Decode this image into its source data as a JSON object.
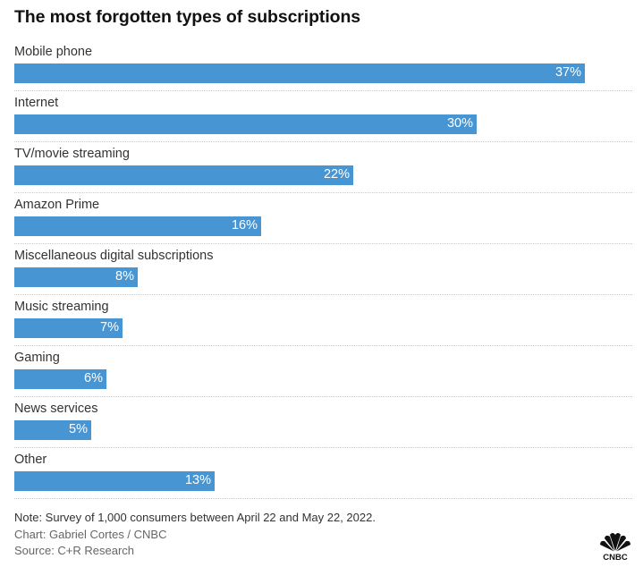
{
  "chart_data": {
    "type": "bar",
    "orientation": "horizontal",
    "title": "The most forgotten types of subscriptions",
    "categories": [
      "Mobile phone",
      "Internet",
      "TV/movie streaming",
      "Amazon Prime",
      "Miscellaneous digital subscriptions",
      "Music streaming",
      "Gaming",
      "News services",
      "Other"
    ],
    "values": [
      37,
      30,
      22,
      16,
      8,
      7,
      6,
      5,
      13
    ],
    "value_labels": [
      "37%",
      "30%",
      "22%",
      "16%",
      "8%",
      "7%",
      "6%",
      "5%",
      "13%"
    ],
    "unit": "%",
    "xlabel": "",
    "ylabel": "",
    "xlim": [
      0,
      40
    ],
    "grid": false,
    "legend": "none",
    "bar_color": "#4895d4"
  },
  "footer": {
    "note": "Note: Survey of 1,000 consumers between April 22 and May 22, 2022.",
    "credit": "Chart: Gabriel Cortes / CNBC",
    "source": "Source: C+R Research"
  },
  "logo": {
    "icon": "cnbc-peacock-logo",
    "text": "CNBC"
  }
}
